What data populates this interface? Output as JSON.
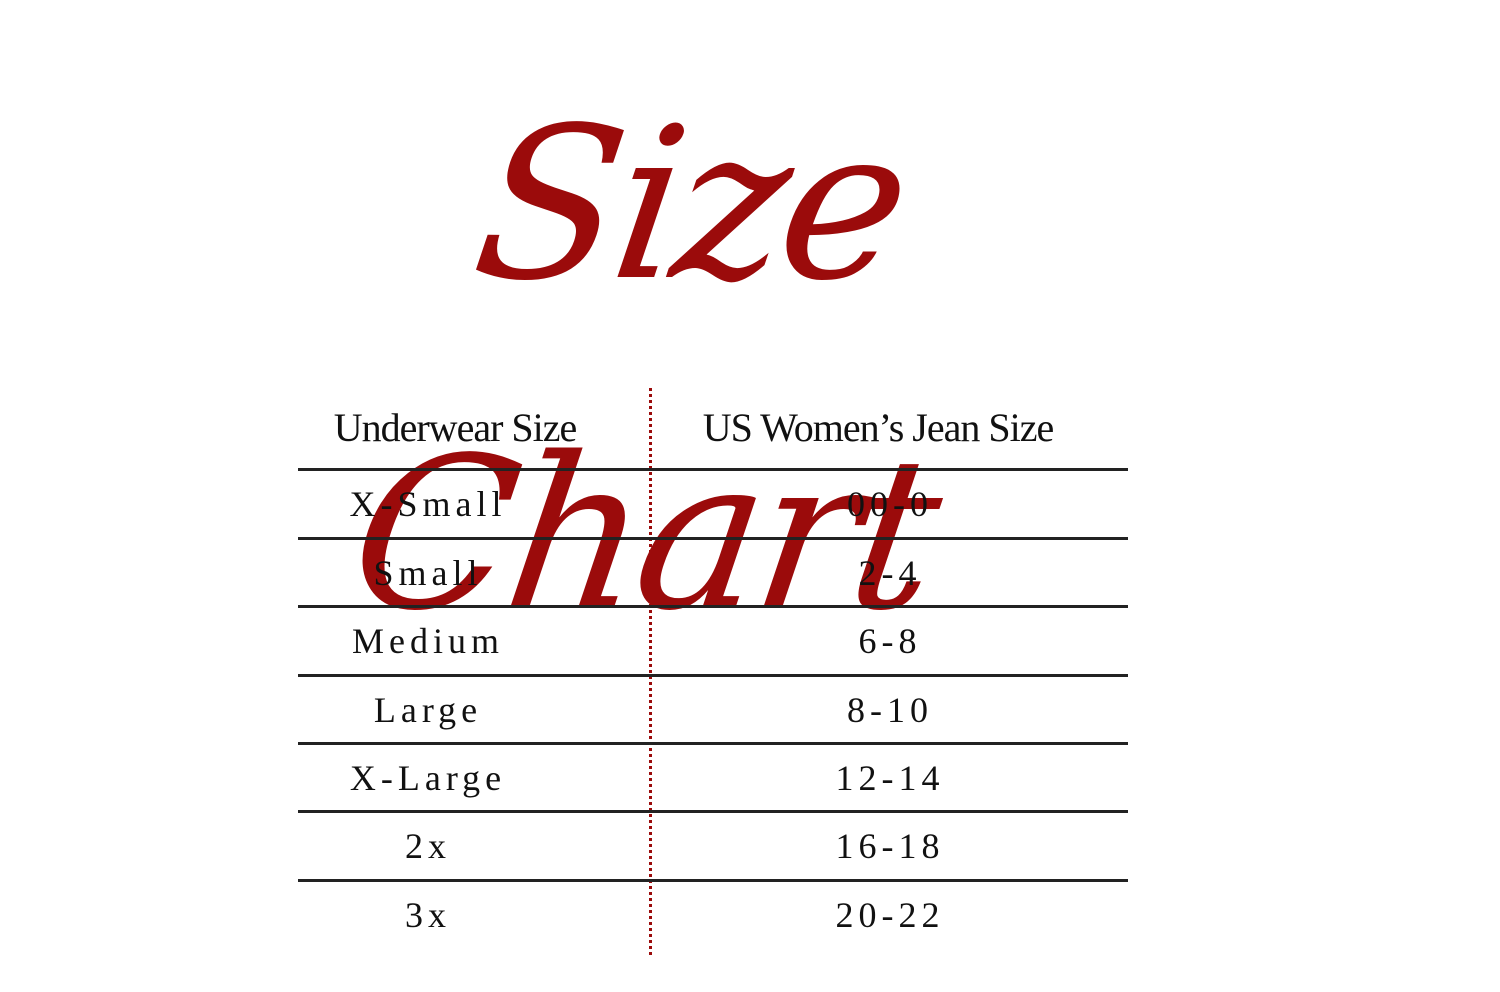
{
  "title": "Size Chart",
  "colors": {
    "accent": "#9b0b0b",
    "text": "#111111",
    "rule": "#222222"
  },
  "table": {
    "headers": [
      "Underwear Size",
      "US Women’s Jean Size"
    ],
    "rows": [
      [
        "X-Small",
        "00-0"
      ],
      [
        "Small",
        "2-4"
      ],
      [
        "Medium",
        "6-8"
      ],
      [
        "Large",
        "8-10"
      ],
      [
        "X-Large",
        "12-14"
      ],
      [
        "2x",
        "16-18"
      ],
      [
        "3x",
        "20-22"
      ]
    ]
  }
}
